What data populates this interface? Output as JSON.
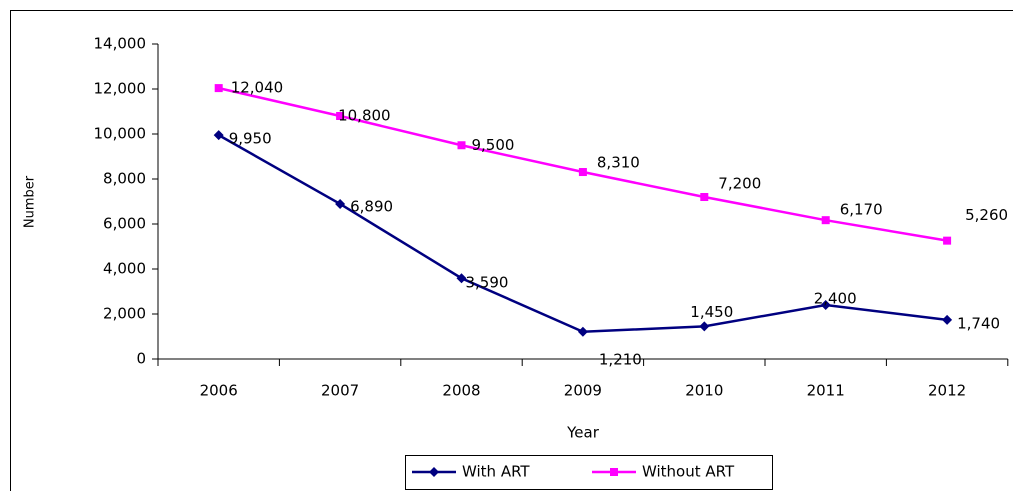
{
  "chart_data": {
    "type": "line",
    "x_label": "Year",
    "y_label": "Number",
    "categories": [
      "2006",
      "2007",
      "2008",
      "2009",
      "2010",
      "2011",
      "2012"
    ],
    "series": [
      {
        "name": "With ART",
        "color": "#000080",
        "marker": "diamond",
        "values": [
          9950,
          6890,
          3590,
          1210,
          1450,
          2400,
          1740
        ],
        "value_labels": [
          "9,950",
          "6,890",
          "3,590",
          "1,210",
          "1,450",
          "2,400",
          "1,740"
        ]
      },
      {
        "name": "Without ART",
        "color": "#ff00ff",
        "marker": "square",
        "values": [
          12040,
          10800,
          9500,
          8310,
          7200,
          6170,
          5260
        ],
        "value_labels": [
          "12,040",
          "10,800",
          "9,500",
          "8,310",
          "7,200",
          "6,170",
          "5,260"
        ]
      }
    ],
    "ylim": [
      0,
      14000
    ],
    "yticks": [
      0,
      {
        "value": 2000,
        "label": "2,000"
      },
      {
        "value": 4000,
        "label": "4,000"
      },
      {
        "value": 6000,
        "label": "6,000"
      },
      {
        "value": 8000,
        "label": "8,000"
      },
      {
        "value": 10000,
        "label": "10,000"
      },
      {
        "value": 12000,
        "label": "12,000"
      },
      {
        "value": 14000,
        "label": "14,000"
      }
    ],
    "grid": false,
    "legend": "bottom"
  }
}
